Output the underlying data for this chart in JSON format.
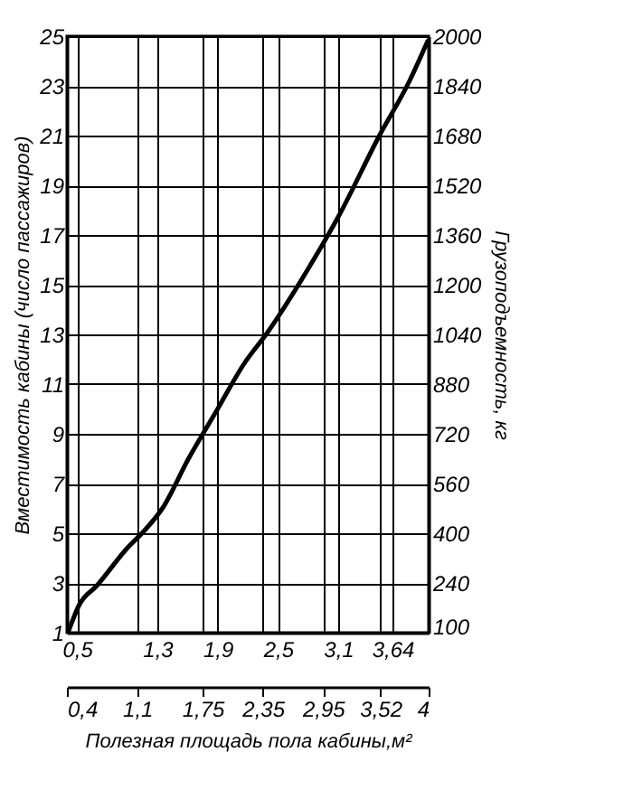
{
  "chart_data": {
    "type": "line",
    "xlabel": "Полезная площадь пола кабины,м²",
    "ylabel": "Вместимость кабины (число пассажиров)",
    "y2label": "Грузоподъемность, кг",
    "x": [
      0.42,
      0.52,
      0.7,
      1.0,
      1.17,
      1.35,
      1.61,
      1.9,
      2.16,
      2.4,
      2.81,
      3.11,
      3.51,
      3.81,
      3.99
    ],
    "series": [
      {
        "color": "#000000",
        "values": [
          1.1,
          2.1,
          2.9,
          4.4,
          5.1,
          6.0,
          8.0,
          10.0,
          11.8,
          13.1,
          15.7,
          17.8,
          21.0,
          23.2,
          24.8
        ]
      }
    ],
    "xlim": [
      0.4,
      4
    ],
    "xticks": [
      {
        "value": 0.4,
        "label": "0,4"
      },
      {
        "value": 1.1,
        "label": "1,1"
      },
      {
        "value": 1.75,
        "label": "1,75"
      },
      {
        "value": 2.35,
        "label": "2,35"
      },
      {
        "value": 2.95,
        "label": "2,95"
      },
      {
        "value": 3.52,
        "label": "3,52"
      },
      4
    ],
    "x2lim": [
      0.4,
      4
    ],
    "x2ticks": [
      {
        "value": 0.5,
        "label": "0,5"
      },
      {
        "value": 1.3,
        "label": "1,3"
      },
      {
        "value": 1.9,
        "label": "1,9"
      },
      {
        "value": 2.5,
        "label": "2,5"
      },
      {
        "value": 3.1,
        "label": "3,1"
      },
      {
        "value": 3.64,
        "label": "3,64"
      }
    ],
    "ylim": [
      1,
      25
    ],
    "yticks": [
      1,
      3,
      5,
      7,
      9,
      11,
      13,
      15,
      17,
      19,
      21,
      23,
      25
    ],
    "y2lim": [
      80,
      2000
    ],
    "y2ticks": [
      100,
      240,
      400,
      560,
      720,
      880,
      1040,
      1200,
      1360,
      1520,
      1680,
      1840,
      2000
    ],
    "grid": true,
    "marker": "none",
    "line_style": "solid"
  }
}
